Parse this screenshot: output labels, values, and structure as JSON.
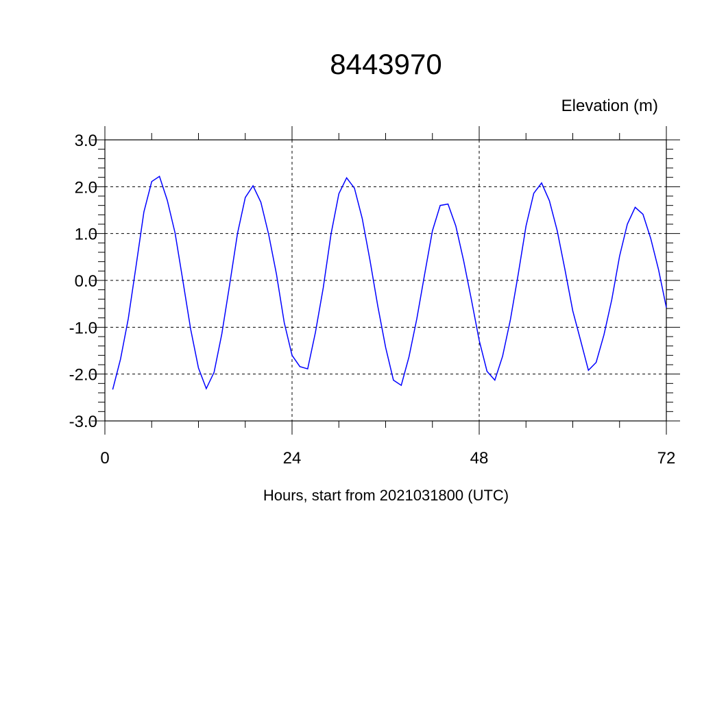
{
  "chart_data": {
    "type": "line",
    "title": "8443970",
    "ylabel": "Elevation (m)",
    "xlabel": "Hours, start from 2021031800 (UTC)",
    "xlim": [
      0,
      72
    ],
    "ylim": [
      -3.0,
      3.0
    ],
    "x_ticks": [
      0,
      24,
      48,
      72
    ],
    "x_tick_labels": [
      "0",
      "24",
      "48",
      "72"
    ],
    "x_minor_step": 6,
    "y_ticks": [
      -3.0,
      -2.0,
      -1.0,
      0.0,
      1.0,
      2.0,
      3.0
    ],
    "y_tick_labels": [
      "-3.0",
      "-2.0",
      "-1.0",
      "0.0",
      "1.0",
      "2.0",
      "3.0"
    ],
    "y_minor_step": 0.2,
    "grid": true,
    "grid_style": "dashed",
    "series": [
      {
        "color": "#0000ff",
        "x": [
          1,
          2,
          3,
          4,
          5,
          6,
          7,
          8,
          9,
          10,
          11,
          12,
          13,
          14,
          15,
          16,
          17,
          18,
          19,
          20,
          21,
          22,
          23,
          24,
          25,
          26,
          27,
          28,
          29,
          30,
          31,
          32,
          33,
          34,
          35,
          36,
          37,
          38,
          39,
          40,
          41,
          42,
          43,
          44,
          45,
          46,
          47,
          48,
          49,
          50,
          51,
          52,
          53,
          54,
          55,
          56,
          57,
          58,
          59,
          60,
          61,
          62,
          63,
          64,
          65,
          66,
          67,
          68,
          69,
          70,
          71,
          72
        ],
        "values": [
          -2.33,
          -1.68,
          -0.82,
          0.31,
          1.46,
          2.11,
          2.22,
          1.71,
          1.01,
          -0.01,
          -1.04,
          -1.87,
          -2.31,
          -1.96,
          -1.14,
          -0.09,
          1.0,
          1.77,
          2.02,
          1.67,
          0.98,
          0.13,
          -0.9,
          -1.6,
          -1.84,
          -1.89,
          -1.11,
          -0.16,
          0.99,
          1.85,
          2.19,
          1.97,
          1.32,
          0.42,
          -0.55,
          -1.43,
          -2.13,
          -2.24,
          -1.63,
          -0.82,
          0.13,
          1.06,
          1.6,
          1.63,
          1.16,
          0.42,
          -0.41,
          -1.28,
          -1.94,
          -2.13,
          -1.62,
          -0.84,
          0.13,
          1.16,
          1.86,
          2.08,
          1.7,
          1.06,
          0.23,
          -0.65,
          -1.28,
          -1.92,
          -1.75,
          -1.16,
          -0.41,
          0.52,
          1.2,
          1.56,
          1.41,
          0.89,
          0.23,
          -0.58
        ]
      }
    ]
  }
}
